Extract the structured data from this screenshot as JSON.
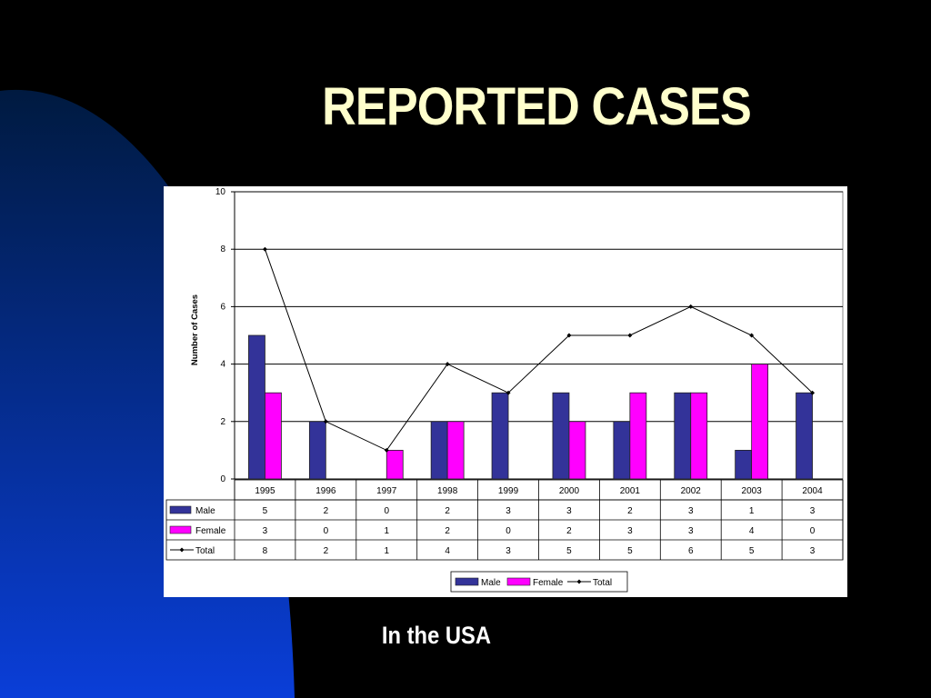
{
  "slide": {
    "title": "REPORTED CASES",
    "subtitle": "In the USA"
  },
  "colors": {
    "background": "#000000",
    "bg_shape_dark": "#001a40",
    "bg_shape_light": "#0a3ed8",
    "title": "#ffffcc",
    "male": "#333399",
    "female": "#ff00ff",
    "total": "#000000"
  },
  "chart_data": {
    "type": "bar",
    "ylabel": "Number of Cases",
    "ylim": [
      0,
      10
    ],
    "yticks": [
      0,
      2,
      4,
      6,
      8,
      10
    ],
    "grid": true,
    "legend_placement": "bottom-center",
    "categories": [
      "1995",
      "1996",
      "1997",
      "1998",
      "1999",
      "2000",
      "2001",
      "2002",
      "2003",
      "2004"
    ],
    "series": [
      {
        "name": "Male",
        "type": "bar",
        "values": [
          5,
          2,
          0,
          2,
          3,
          3,
          2,
          3,
          1,
          3
        ]
      },
      {
        "name": "Female",
        "type": "bar",
        "values": [
          3,
          0,
          1,
          2,
          0,
          2,
          3,
          3,
          4,
          0
        ]
      },
      {
        "name": "Total",
        "type": "line",
        "values": [
          8,
          2,
          1,
          4,
          3,
          5,
          5,
          6,
          5,
          3
        ]
      }
    ]
  }
}
